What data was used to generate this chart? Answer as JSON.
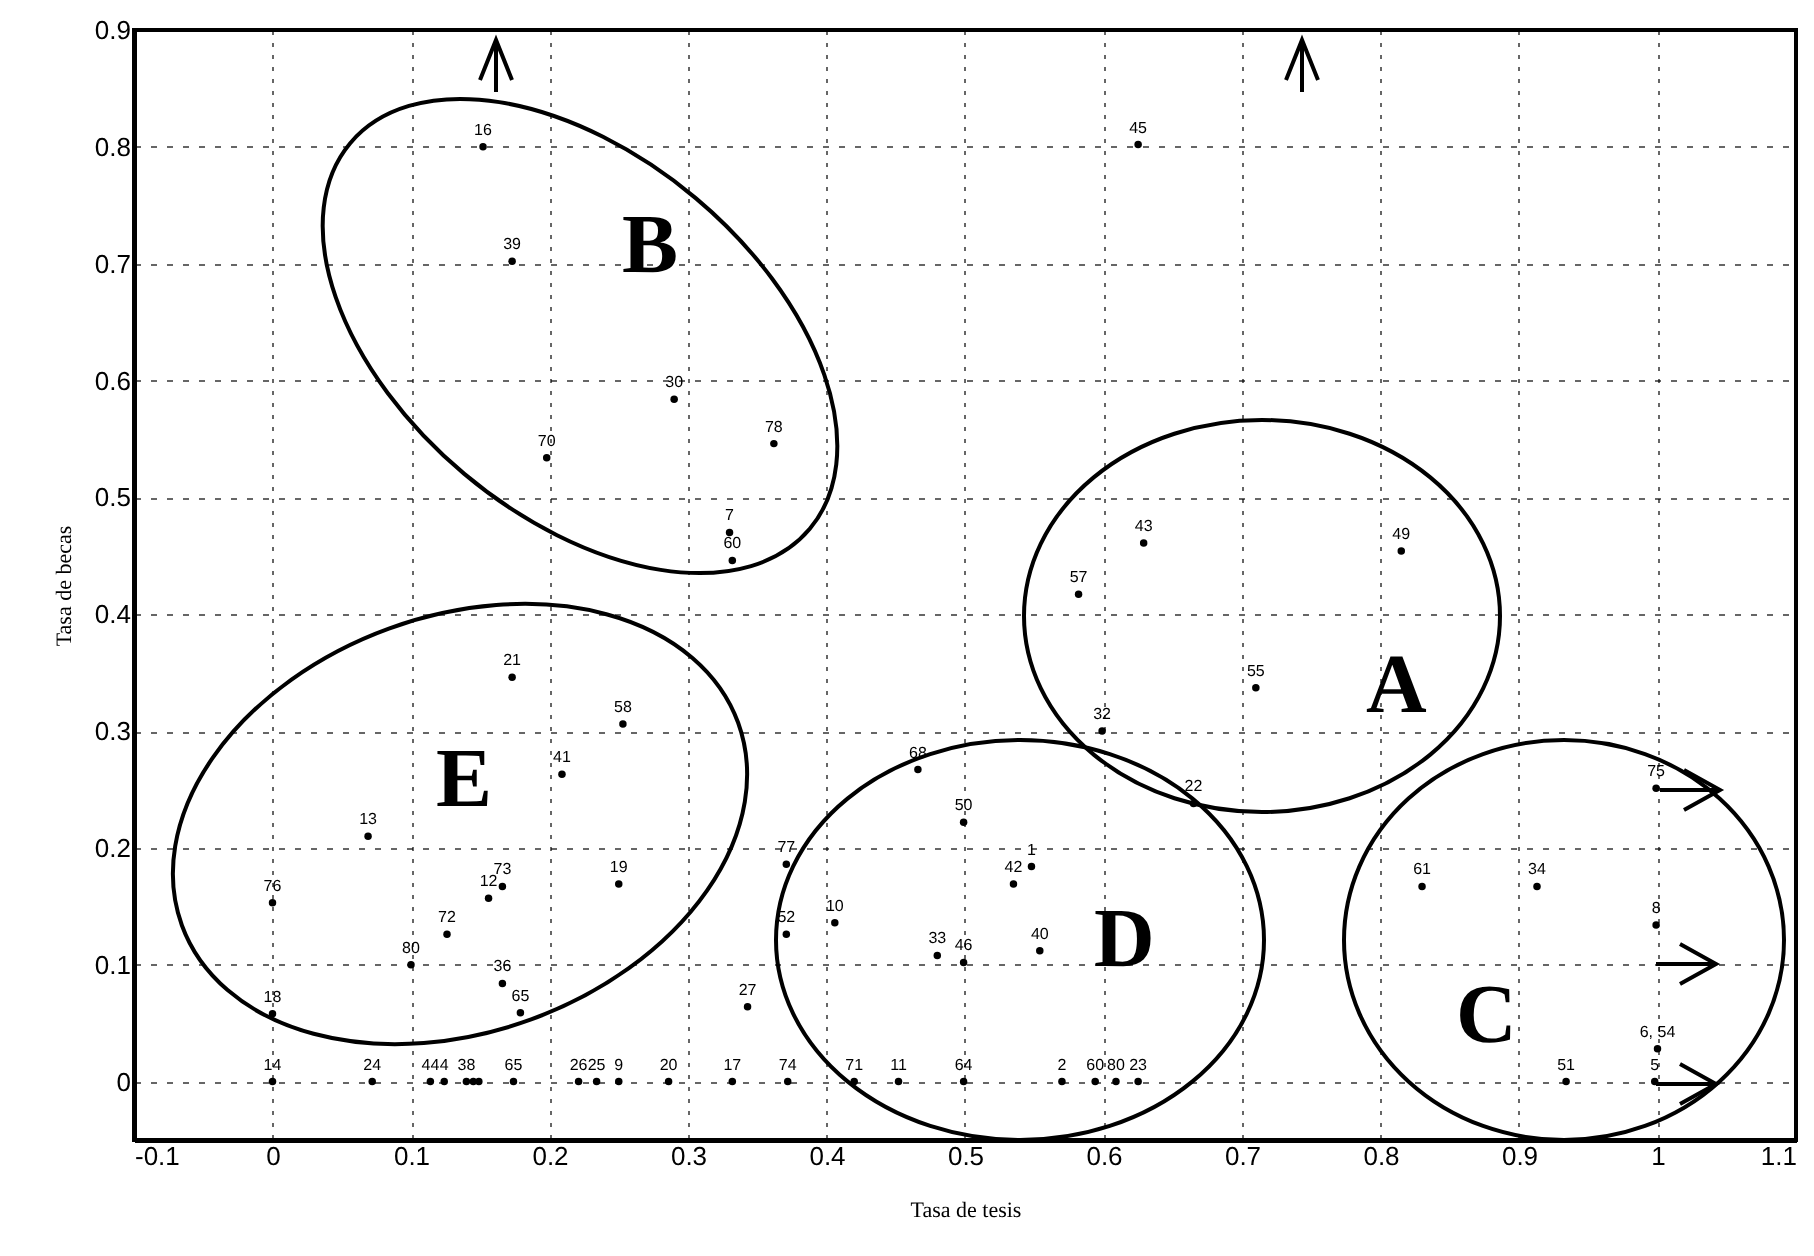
{
  "chart_data": {
    "type": "scatter",
    "xlabel": "Tasa de tesis",
    "ylabel": "Tasa de becas",
    "xlim": [
      -0.1,
      1.1
    ],
    "ylim": [
      -0.05,
      0.9
    ],
    "xticks": [
      -0.1,
      0,
      0.1,
      0.2,
      0.3,
      0.4,
      0.5,
      0.6,
      0.7,
      0.8,
      0.9,
      1,
      1.1
    ],
    "yticks": [
      0,
      0.1,
      0.2,
      0.3,
      0.4,
      0.5,
      0.6,
      0.7,
      0.8,
      0.9
    ],
    "grid": true,
    "marker": "circle",
    "series": [
      {
        "color": "#000000",
        "x": [
          0.152,
          0.173,
          0.29,
          0.362,
          0.198,
          0.33,
          0.332,
          0.625,
          0.629,
          0.815,
          0.582,
          0.71,
          0.599,
          0.665,
          0.466,
          0.499,
          0.548,
          0.535,
          0.406,
          0.48,
          0.499,
          0.554,
          0.371,
          0.371,
          0.343,
          0.173,
          0.253,
          0.209,
          0.069,
          0,
          0.166,
          0.156,
          0.126,
          0.1,
          0.25,
          0.166,
          0.179,
          0,
          0,
          0.072,
          0.114,
          0.124,
          0.14,
          0.145,
          0.149,
          0.174,
          0.221,
          0.234,
          0.25,
          0.286,
          0.332,
          0.372,
          0.42,
          0.452,
          0.499,
          0.57,
          0.594,
          0.609,
          0.625,
          0.934,
          0.998,
          1,
          0.999,
          0.999,
          0.83,
          0.913
        ],
        "values": [
          0.8,
          0.702,
          0.584,
          0.546,
          0.534,
          0.47,
          0.446,
          0.802,
          0.461,
          0.454,
          0.417,
          0.337,
          0.3,
          0.238,
          0.267,
          0.222,
          0.184,
          0.169,
          0.136,
          0.108,
          0.102,
          0.112,
          0.186,
          0.126,
          0.064,
          0.346,
          0.306,
          0.263,
          0.21,
          0.153,
          0.167,
          0.157,
          0.126,
          0.1,
          0.169,
          0.084,
          0.059,
          0.058,
          0,
          0,
          0,
          0,
          0,
          0,
          0,
          0,
          0,
          0,
          0,
          0,
          0,
          0,
          0,
          0,
          0,
          0,
          0,
          0,
          0,
          0,
          0,
          0.028,
          0.251,
          0.134,
          0.167,
          0.167
        ]
      }
    ],
    "annotations": [
      "A",
      "B",
      "C",
      "D",
      "E",
      {
        "text": "16",
        "x": 0.152,
        "y": 0.8
      },
      {
        "text": "39",
        "x": 0.173,
        "y": 0.702
      },
      {
        "text": "30",
        "x": 0.29,
        "y": 0.584
      },
      {
        "text": "78",
        "x": 0.362,
        "y": 0.546
      },
      {
        "text": "70",
        "x": 0.198,
        "y": 0.534
      },
      {
        "text": "7",
        "x": 0.33,
        "y": 0.47
      },
      {
        "text": "60",
        "x": 0.332,
        "y": 0.446
      },
      {
        "text": "45",
        "x": 0.625,
        "y": 0.802
      },
      {
        "text": "43",
        "x": 0.629,
        "y": 0.461
      },
      {
        "text": "49",
        "x": 0.815,
        "y": 0.454
      },
      {
        "text": "57",
        "x": 0.582,
        "y": 0.417
      },
      {
        "text": "55",
        "x": 0.71,
        "y": 0.337
      },
      {
        "text": "32",
        "x": 0.599,
        "y": 0.3
      },
      {
        "text": "22",
        "x": 0.665,
        "y": 0.238
      },
      {
        "text": "68",
        "x": 0.466,
        "y": 0.267
      },
      {
        "text": "50",
        "x": 0.499,
        "y": 0.222
      },
      {
        "text": "1",
        "x": 0.548,
        "y": 0.184
      },
      {
        "text": "42",
        "x": 0.535,
        "y": 0.169
      },
      {
        "text": "10",
        "x": 0.406,
        "y": 0.136
      },
      {
        "text": "33",
        "x": 0.48,
        "y": 0.108
      },
      {
        "text": "46",
        "x": 0.499,
        "y": 0.102
      },
      {
        "text": "40",
        "x": 0.554,
        "y": 0.112
      },
      {
        "text": "77",
        "x": 0.371,
        "y": 0.186
      },
      {
        "text": "52",
        "x": 0.371,
        "y": 0.126
      },
      {
        "text": "27",
        "x": 0.343,
        "y": 0.064
      },
      {
        "text": "21",
        "x": 0.173,
        "y": 0.346
      },
      {
        "text": "58",
        "x": 0.253,
        "y": 0.306
      },
      {
        "text": "41",
        "x": 0.209,
        "y": 0.263
      },
      {
        "text": "13",
        "x": 0.069,
        "y": 0.21
      },
      {
        "text": "76",
        "x": 0,
        "y": 0.153
      },
      {
        "text": "73",
        "x": 0.166,
        "y": 0.167
      },
      {
        "text": "12",
        "x": 0.156,
        "y": 0.157
      },
      {
        "text": "72",
        "x": 0.126,
        "y": 0.126
      },
      {
        "text": "80",
        "x": 0.1,
        "y": 0.1
      },
      {
        "text": "19",
        "x": 0.25,
        "y": 0.169
      },
      {
        "text": "36",
        "x": 0.166,
        "y": 0.084
      },
      {
        "text": "65",
        "x": 0.179,
        "y": 0.059
      },
      {
        "text": "18",
        "x": 0,
        "y": 0.058
      },
      {
        "text": "14",
        "x": 0,
        "y": 0
      },
      {
        "text": "24",
        "x": 0.072,
        "y": 0
      },
      {
        "text": "44",
        "x": 0.114,
        "y": 0
      },
      {
        "text": "4",
        "x": 0.124,
        "y": 0
      },
      {
        "text": "38",
        "x": 0.14,
        "y": 0
      },
      {
        "text": "65",
        "x": 0.174,
        "y": 0
      },
      {
        "text": "26",
        "x": 0.221,
        "y": 0
      },
      {
        "text": "25",
        "x": 0.234,
        "y": 0
      },
      {
        "text": "9",
        "x": 0.25,
        "y": 0
      },
      {
        "text": "20",
        "x": 0.286,
        "y": 0
      },
      {
        "text": "17",
        "x": 0.332,
        "y": 0
      },
      {
        "text": "74",
        "x": 0.372,
        "y": 0
      },
      {
        "text": "71",
        "x": 0.42,
        "y": 0
      },
      {
        "text": "11",
        "x": 0.452,
        "y": 0
      },
      {
        "text": "64",
        "x": 0.499,
        "y": 0
      },
      {
        "text": "2",
        "x": 0.57,
        "y": 0
      },
      {
        "text": "60",
        "x": 0.594,
        "y": 0
      },
      {
        "text": "80",
        "x": 0.609,
        "y": 0
      },
      {
        "text": "23",
        "x": 0.625,
        "y": 0
      },
      {
        "text": "51",
        "x": 0.934,
        "y": 0
      },
      {
        "text": "5",
        "x": 0.998,
        "y": 0
      },
      {
        "text": "6, 54",
        "x": 1,
        "y": 0.028
      },
      {
        "text": "75",
        "x": 0.999,
        "y": 0.251
      },
      {
        "text": "8",
        "x": 0.999,
        "y": 0.134
      },
      {
        "text": "61",
        "x": 0.83,
        "y": 0.167
      },
      {
        "text": "34",
        "x": 0.913,
        "y": 0.167
      }
    ]
  }
}
